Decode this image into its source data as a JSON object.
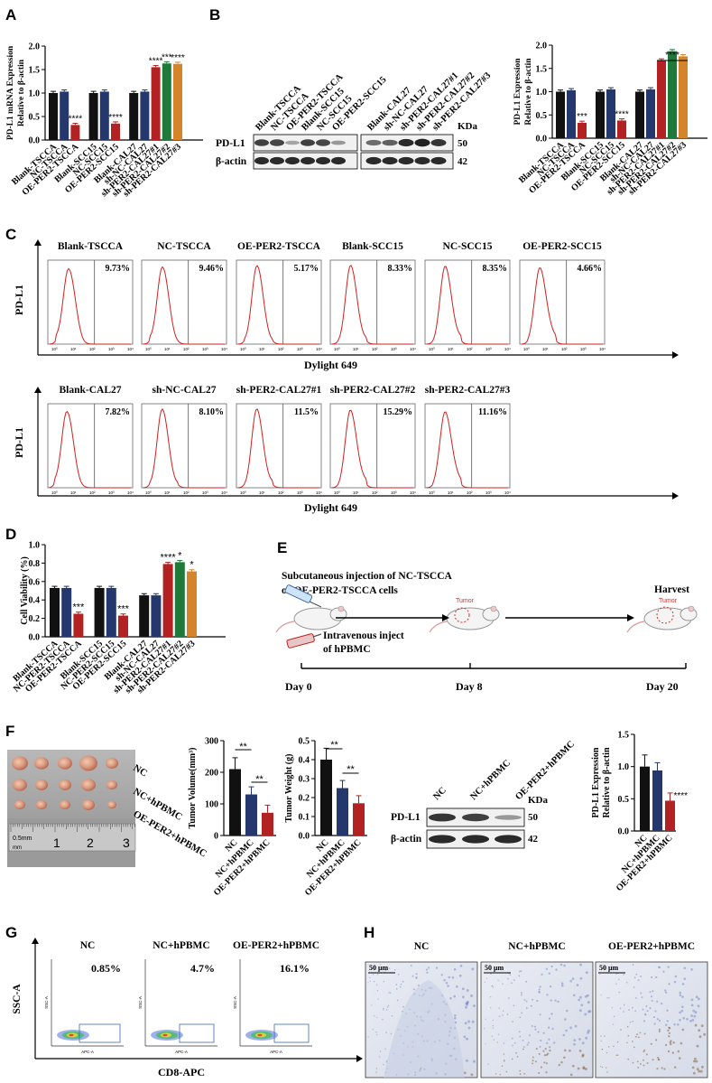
{
  "panels": {
    "A": {
      "letter": "A",
      "ylabel": [
        "PD-L1 mRNA Expression",
        "Relative to β-actin"
      ],
      "yticks": [
        "0.0",
        "0.5",
        "1.0",
        "1.5",
        "2.0"
      ],
      "ylim": [
        0,
        2.0
      ],
      "categories": [
        "Blank-TSCCA",
        "NC-TSCCA",
        "OE-PER2-TSCCA",
        "Blank-SCC15",
        "NC-SCC15",
        "OE-PER2-SCC15",
        "Blank-CAL27",
        "sh-NC-CAL27",
        "sh-PER2-CAL27#1",
        "sh-PER2-CAL27#2",
        "sh-PER2-CAL27#3"
      ],
      "values": [
        1.0,
        1.03,
        0.32,
        1.0,
        1.03,
        0.35,
        1.0,
        1.03,
        1.55,
        1.63,
        1.62
      ],
      "colors": [
        "#111111",
        "#24386e",
        "#b22222",
        "#111111",
        "#24386e",
        "#b22222",
        "#111111",
        "#24386e",
        "#b22222",
        "#1f7a3a",
        "#d4842a"
      ],
      "sig": [
        "",
        "",
        "****",
        "",
        "",
        "****",
        "",
        "",
        "****",
        "***",
        "****"
      ]
    },
    "B": {
      "letter": "B",
      "blot_lanes_left": [
        "Blank-TSCCA",
        "NC-TSCCA",
        "OE-PER2-TSCCA",
        "Blank-SCC15",
        "NC-SCC15",
        "OE-PER2-SCC15"
      ],
      "blot_lanes_right": [
        "Blank-CAL27",
        "sh-NC-CAL27",
        "sh-PER2-CAL27#1",
        "sh-PER2-CAL27#2",
        "sh-PER2-CAL27#3"
      ],
      "kda": "KDa",
      "rows": [
        {
          "name": "PD-L1",
          "kda": "50"
        },
        {
          "name": "β-actin",
          "kda": "42"
        }
      ],
      "ylabel": [
        "PD-L1  Expression",
        "Relative to β-actin"
      ],
      "yticks": [
        "0.0",
        "0.5",
        "1.0",
        "1.5",
        "2.0"
      ],
      "ylim": [
        0,
        2.0
      ],
      "categories": [
        "Blank-TSCCA",
        "NC-TSCCA",
        "OE-PER2-TSCCA",
        "Blank-SCC15",
        "NC-SCC15",
        "OE-PER2-SCC15",
        "Blank-CAL27",
        "sh-NC-CAL27",
        "sh-PER2-CAL27#1",
        "sh-PER2-CAL27#2",
        "sh-PER2-CAL27#3"
      ],
      "values": [
        1.0,
        1.03,
        0.33,
        1.0,
        1.05,
        0.38,
        1.0,
        1.05,
        1.67,
        1.87,
        1.76
      ],
      "colors": [
        "#111111",
        "#24386e",
        "#b22222",
        "#111111",
        "#24386e",
        "#b22222",
        "#111111",
        "#24386e",
        "#b22222",
        "#1f7a3a",
        "#d4842a"
      ],
      "sig": [
        "",
        "",
        "***",
        "",
        "",
        "****",
        "",
        "",
        "",
        "",
        ""
      ],
      "bracket_label": "****"
    },
    "C": {
      "letter": "C",
      "ylabel": "PD-L1",
      "xlabel": "Dylight 649",
      "row1": [
        {
          "title": "Blank-TSCCA",
          "pct": "9.73%"
        },
        {
          "title": "NC-TSCCA",
          "pct": "9.46%"
        },
        {
          "title": "OE-PER2-TSCCA",
          "pct": "5.17%"
        },
        {
          "title": "Blank-SCC15",
          "pct": "8.33%"
        },
        {
          "title": "NC-SCC15",
          "pct": "8.35%"
        },
        {
          "title": "OE-PER2-SCC15",
          "pct": "4.66%"
        }
      ],
      "row2": [
        {
          "title": "Blank-CAL27",
          "pct": "7.82%"
        },
        {
          "title": "sh-NC-CAL27",
          "pct": "8.10%"
        },
        {
          "title": "sh-PER2-CAL27#1",
          "pct": "11.5%"
        },
        {
          "title": "sh-PER2-CAL27#2",
          "pct": "15.29%"
        },
        {
          "title": "sh-PER2-CAL27#3",
          "pct": "11.16%"
        }
      ]
    },
    "D": {
      "letter": "D",
      "ylabel": "Cell Viability (%)",
      "yticks": [
        "0.0",
        "0.2",
        "0.4",
        "0.6",
        "0.8",
        "1.0"
      ],
      "ylim": [
        0,
        1.0
      ],
      "categories": [
        "Blank-TSCCA",
        "NC-PER2-TSCCA",
        "OE-PER2-TSCCA",
        "Blank-SCC15",
        "NC-PER2-SCC15",
        "OE-PER2-SCC15",
        "Blank-CAL27",
        "sh-NC-CAL27",
        "sh-PER2-CAL27#1",
        "sh-PER2-CAL27#2",
        "sh-PER2-CAL27#3"
      ],
      "values": [
        0.53,
        0.53,
        0.25,
        0.53,
        0.53,
        0.23,
        0.45,
        0.45,
        0.79,
        0.81,
        0.71
      ],
      "colors": [
        "#111111",
        "#24386e",
        "#b22222",
        "#111111",
        "#24386e",
        "#b22222",
        "#111111",
        "#24386e",
        "#b22222",
        "#1f7a3a",
        "#d4842a"
      ],
      "sig": [
        "",
        "",
        "***",
        "",
        "",
        "***",
        "",
        "",
        "****",
        "*",
        "*"
      ]
    },
    "E": {
      "letter": "E",
      "line1": "Subcutaneous injection of NC-TSCCA",
      "line2": "or OE-PER2-TSCCA cells",
      "iv1": "Intravenous inject",
      "iv2": "of hPBMC",
      "harvest": "Harvest",
      "tumor": "Tumor",
      "days": [
        "Day 0",
        "Day 8",
        "Day 20"
      ]
    },
    "F": {
      "letter": "F",
      "photo_labels": [
        "NC",
        "NC+hPBMC",
        "OE-PER2+hPBMC"
      ],
      "ruler_unit": "0.5mm",
      "ruler_mm": "mm",
      "ruler_nums": [
        "1",
        "2",
        "3"
      ],
      "groups": [
        "NC",
        "NC+hPBMC",
        "OE-PER2+hPBMC"
      ],
      "colors": [
        "#111111",
        "#24386e",
        "#b22222"
      ],
      "volume": {
        "ylabel": "Tumor Volume(mm³)",
        "yticks": [
          "0",
          "100",
          "200",
          "300"
        ],
        "ylim": [
          0,
          300
        ],
        "values": [
          210,
          130,
          72
        ],
        "sig": [
          "**",
          "**"
        ]
      },
      "weight": {
        "ylabel": "Tumor Weight (g)",
        "yticks": [
          "0.0",
          "0.1",
          "0.2",
          "0.3",
          "0.4",
          "0.5"
        ],
        "ylim": [
          0,
          0.5
        ],
        "values": [
          0.4,
          0.25,
          0.17
        ],
        "sig": [
          "**",
          "**"
        ]
      },
      "blot": {
        "kda": "KDa",
        "rows": [
          {
            "name": "PD-L1",
            "kda": "50"
          },
          {
            "name": "β-actin",
            "kda": "42"
          }
        ]
      },
      "expr": {
        "ylabel": [
          "PD-L1  Expression",
          "Relative to β-actin"
        ],
        "yticks": [
          "0.0",
          "0.5",
          "1.0",
          "1.5"
        ],
        "ylim": [
          0,
          1.5
        ],
        "values": [
          1.0,
          0.94,
          0.47
        ],
        "sig": "****"
      }
    },
    "G": {
      "letter": "G",
      "ylabel": "SSC-A",
      "xlabel": "CD8-APC",
      "axis_x": "APC-A",
      "axis_y": "SSC-A",
      "plots": [
        {
          "title": "NC",
          "pct": "0.85%"
        },
        {
          "title": "NC+hPBMC",
          "pct": "4.7%"
        },
        {
          "title": "OE-PER2+hPBMC",
          "pct": "16.1%"
        }
      ]
    },
    "H": {
      "letter": "H",
      "scale": "50 μm",
      "titles": [
        "NC",
        "NC+hPBMC",
        "OE-PER2+hPBMC"
      ]
    }
  }
}
